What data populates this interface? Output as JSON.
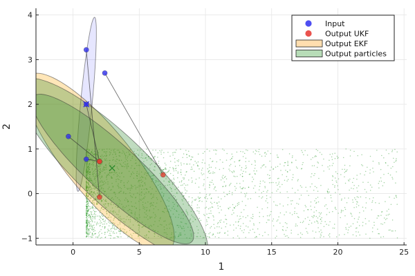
{
  "chart_data": {
    "type": "scatter",
    "xlabel": "1",
    "ylabel": "2",
    "xlim": [
      -2.8,
      25.2
    ],
    "ylim": [
      -1.15,
      4.15
    ],
    "xticks": [
      0,
      5,
      10,
      15,
      20,
      25
    ],
    "yticks": [
      -1,
      0,
      1,
      2,
      3,
      4
    ],
    "xtick_labels": [
      "0",
      "5",
      "10",
      "15",
      "20",
      "25"
    ],
    "ytick_labels": [
      "−1",
      "0",
      "1",
      "2",
      "3",
      "4"
    ],
    "grid": true,
    "legend_position": "top-right",
    "legend": [
      {
        "label": "Input",
        "kind": "marker",
        "color": "#3b3bf0"
      },
      {
        "label": "Output UKF",
        "kind": "marker",
        "color": "#e8403b"
      },
      {
        "label": "Output EKF",
        "kind": "patch",
        "color": "#ffc36e"
      },
      {
        "label": "Output particles",
        "kind": "patch",
        "color": "#7cc07c"
      }
    ],
    "input_points": [
      {
        "x": 1.0,
        "y": 2.0,
        "marker": "x"
      },
      {
        "x": 1.0,
        "y": 3.22
      },
      {
        "x": 2.4,
        "y": 2.7
      },
      {
        "x": 1.0,
        "y": 2.0
      },
      {
        "x": -0.35,
        "y": 1.28
      },
      {
        "x": 1.0,
        "y": 0.77
      }
    ],
    "input_ellipse": {
      "cx": 1.0,
      "cy": 2.0,
      "rx": 2.05,
      "ry": 0.42,
      "angle_deg": 71.5,
      "color": "#4040ff"
    },
    "output_ukf_points": [
      {
        "x": 2.95,
        "y": 0.57,
        "marker": "x"
      },
      {
        "x": 2.0,
        "y": 0.72
      },
      {
        "x": 6.8,
        "y": 0.42
      },
      {
        "x": 2.0,
        "y": 0.72
      },
      {
        "x": 2.0,
        "y": -0.08
      }
    ],
    "sigma_links": [
      {
        "from": [
          1.0,
          3.22
        ],
        "to": [
          2.0,
          -0.08
        ]
      },
      {
        "from": [
          2.4,
          2.7
        ],
        "to": [
          6.8,
          0.42
        ]
      },
      {
        "from": [
          1.0,
          2.0
        ],
        "to": [
          2.0,
          0.72
        ]
      },
      {
        "from": [
          -0.35,
          1.28
        ],
        "to": [
          2.0,
          0.72
        ]
      },
      {
        "from": [
          1.0,
          0.77
        ],
        "to": [
          2.0,
          0.72
        ]
      }
    ],
    "ekf_ellipse": {
      "cx": 2.0,
      "cy": 0.7,
      "rx": 5.9,
      "ry": 1.05,
      "angle_deg": -17,
      "color": "#ffa500"
    },
    "ukf_ellipse": {
      "cx": 3.0,
      "cy": 0.55,
      "rx": 6.3,
      "ry": 0.72,
      "angle_deg": -14,
      "color": "#2e8b2e"
    },
    "particles_ellipse": {
      "cx": 3.0,
      "cy": 0.55,
      "rx": 7.4,
      "ry": 1.0,
      "angle_deg": -14,
      "color": "#2e8b2e"
    },
    "particles": {
      "x_min": 1.0,
      "x_max": 24.5,
      "y_min": -1.0,
      "y_max": 1.0,
      "count": 2600,
      "color": "#2e9b2e"
    }
  }
}
